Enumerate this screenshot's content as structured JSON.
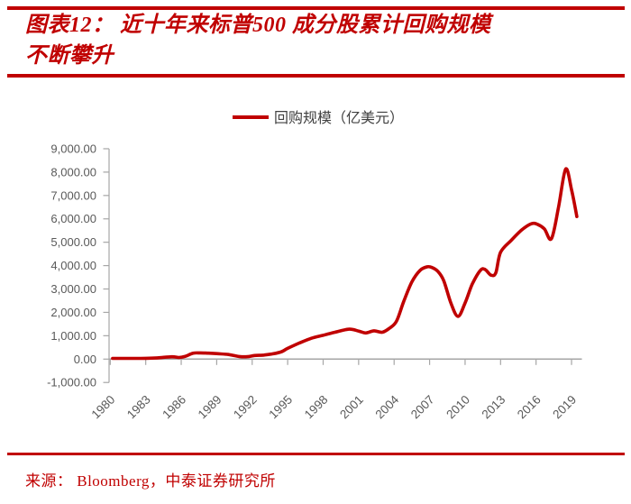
{
  "header": {
    "title_line1": "图表12： 近十年来标普500 成分股累计回购规模",
    "title_line2": "不断攀升",
    "accent_color": "#C00000"
  },
  "footer": {
    "source": "来源：  Bloomberg，中泰证券研究所"
  },
  "chart_data": {
    "type": "line",
    "title": "",
    "xlabel": "",
    "ylabel": "",
    "legend": {
      "label": "回购规模（亿美元）",
      "position": "top-center"
    },
    "grid": false,
    "x_range": [
      1980,
      2020
    ],
    "y_range": [
      -1000,
      9000
    ],
    "x_ticks": [
      1980,
      1983,
      1986,
      1989,
      1992,
      1995,
      1998,
      2001,
      2004,
      2007,
      2010,
      2013,
      2016,
      2019
    ],
    "y_ticks": [
      -1000,
      0,
      1000,
      2000,
      3000,
      4000,
      5000,
      6000,
      7000,
      8000,
      9000
    ],
    "y_tick_labels": [
      "-1,000.00",
      "0.00",
      "1,000.00",
      "2,000.00",
      "3,000.00",
      "4,000.00",
      "5,000.00",
      "6,000.00",
      "7,000.00",
      "8,000.00",
      "9,000.00"
    ],
    "axis_color": "#A6A6A6",
    "label_color": "#595959",
    "legend_text_color": "#404040",
    "series": [
      {
        "name": "回购规模（亿美元）",
        "color": "#C00000",
        "points": [
          [
            1980.2,
            30
          ],
          [
            1981,
            30
          ],
          [
            1982,
            30
          ],
          [
            1983,
            35
          ],
          [
            1984,
            55
          ],
          [
            1985.2,
            100
          ],
          [
            1985.8,
            70
          ],
          [
            1986.3,
            110
          ],
          [
            1987,
            250
          ],
          [
            1987.6,
            265
          ],
          [
            1988.3,
            255
          ],
          [
            1989,
            235
          ],
          [
            1990,
            195
          ],
          [
            1990.9,
            110
          ],
          [
            1991.6,
            105
          ],
          [
            1992.2,
            155
          ],
          [
            1993,
            175
          ],
          [
            1993.8,
            230
          ],
          [
            1994.5,
            320
          ],
          [
            1995,
            460
          ],
          [
            1996,
            690
          ],
          [
            1997,
            890
          ],
          [
            1998,
            1020
          ],
          [
            1999,
            1150
          ],
          [
            2000.2,
            1280
          ],
          [
            2001,
            1200
          ],
          [
            2001.6,
            1120
          ],
          [
            2002.3,
            1210
          ],
          [
            2003,
            1150
          ],
          [
            2003.6,
            1320
          ],
          [
            2004.2,
            1620
          ],
          [
            2004.8,
            2450
          ],
          [
            2005.5,
            3300
          ],
          [
            2006.2,
            3800
          ],
          [
            2006.8,
            3950
          ],
          [
            2007.2,
            3920
          ],
          [
            2007.7,
            3750
          ],
          [
            2008.2,
            3350
          ],
          [
            2008.8,
            2400
          ],
          [
            2009.4,
            1830
          ],
          [
            2010,
            2400
          ],
          [
            2010.6,
            3200
          ],
          [
            2011.3,
            3800
          ],
          [
            2011.7,
            3830
          ],
          [
            2012.2,
            3590
          ],
          [
            2012.6,
            3700
          ],
          [
            2013,
            4570
          ],
          [
            2013.9,
            5080
          ],
          [
            2014.8,
            5530
          ],
          [
            2015.6,
            5790
          ],
          [
            2016.1,
            5770
          ],
          [
            2016.7,
            5570
          ],
          [
            2017.3,
            5150
          ],
          [
            2017.9,
            6500
          ],
          [
            2018.5,
            8130
          ],
          [
            2019,
            7250
          ],
          [
            2019.45,
            6100
          ]
        ]
      }
    ]
  }
}
